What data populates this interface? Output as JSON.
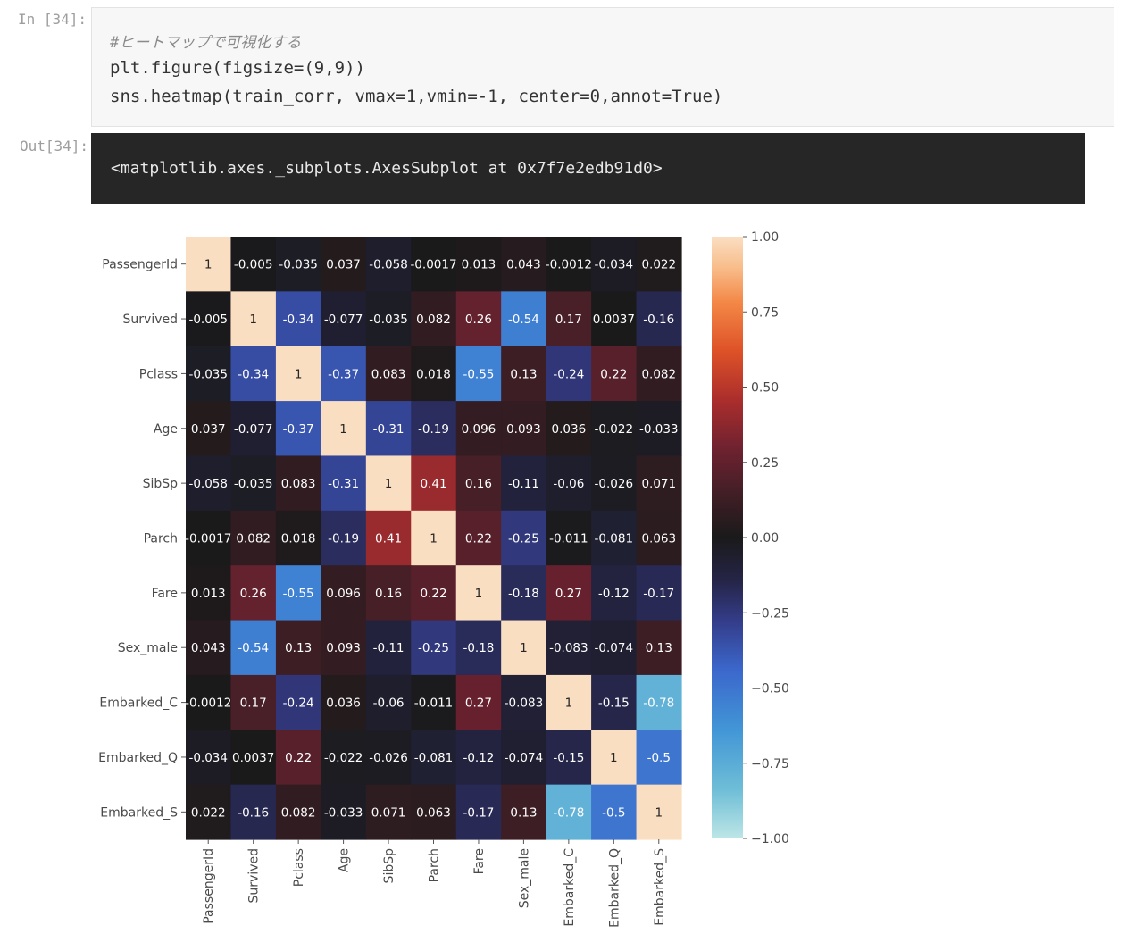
{
  "notebook": {
    "in_prompt": "In [34]:",
    "out_prompt": "Out[34]:",
    "code_lines": [
      "#ヒートマップで可視化する",
      "plt.figure(figsize=(9,9))",
      "sns.heatmap(train_corr, vmax=1,vmin=-1, center=0,annot=True)"
    ],
    "output_text": "<matplotlib.axes._subplots.AxesSubplot at 0x7f7e2edb91d0>"
  },
  "colors": {
    "code_bg": "#f7f7f7",
    "output_bg": "#262626",
    "colormap": "icefire"
  },
  "chart_data": {
    "type": "heatmap",
    "labels": [
      "PassengerId",
      "Survived",
      "Pclass",
      "Age",
      "SibSp",
      "Parch",
      "Fare",
      "Sex_male",
      "Embarked_C",
      "Embarked_Q",
      "Embarked_S"
    ],
    "annotations": [
      [
        "1",
        "-0.005",
        "-0.035",
        "0.037",
        "-0.058",
        "-0.0017",
        "0.013",
        "0.043",
        "-0.0012",
        "-0.034",
        "0.022"
      ],
      [
        "-0.005",
        "1",
        "-0.34",
        "-0.077",
        "-0.035",
        "0.082",
        "0.26",
        "-0.54",
        "0.17",
        "0.0037",
        "-0.16"
      ],
      [
        "-0.035",
        "-0.34",
        "1",
        "-0.37",
        "0.083",
        "0.018",
        "-0.55",
        "0.13",
        "-0.24",
        "0.22",
        "0.082"
      ],
      [
        "0.037",
        "-0.077",
        "-0.37",
        "1",
        "-0.31",
        "-0.19",
        "0.096",
        "0.093",
        "0.036",
        "-0.022",
        "-0.033"
      ],
      [
        "-0.058",
        "-0.035",
        "0.083",
        "-0.31",
        "1",
        "0.41",
        "0.16",
        "-0.11",
        "-0.06",
        "-0.026",
        "0.071"
      ],
      [
        "-0.0017",
        "0.082",
        "0.018",
        "-0.19",
        "0.41",
        "1",
        "0.22",
        "-0.25",
        "-0.011",
        "-0.081",
        "0.063"
      ],
      [
        "0.013",
        "0.26",
        "-0.55",
        "0.096",
        "0.16",
        "0.22",
        "1",
        "-0.18",
        "0.27",
        "-0.12",
        "-0.17"
      ],
      [
        "0.043",
        "-0.54",
        "0.13",
        "0.093",
        "-0.11",
        "-0.25",
        "-0.18",
        "1",
        "-0.083",
        "-0.074",
        "0.13"
      ],
      [
        "-0.0012",
        "0.17",
        "-0.24",
        "0.036",
        "-0.06",
        "-0.011",
        "0.27",
        "-0.083",
        "1",
        "-0.15",
        "-0.78"
      ],
      [
        "-0.034",
        "0.0037",
        "0.22",
        "-0.022",
        "-0.026",
        "-0.081",
        "-0.12",
        "-0.074",
        "-0.15",
        "1",
        "-0.5"
      ],
      [
        "0.022",
        "-0.16",
        "0.082",
        "-0.033",
        "0.071",
        "0.063",
        "-0.17",
        "0.13",
        "-0.78",
        "-0.5",
        "1"
      ]
    ],
    "vmin": -1,
    "vmax": 1,
    "center": 0,
    "colorbar_ticks": [
      "1.00",
      "0.75",
      "0.50",
      "0.25",
      "0.00",
      "−0.25",
      "−0.50",
      "−0.75",
      "−1.00"
    ]
  }
}
